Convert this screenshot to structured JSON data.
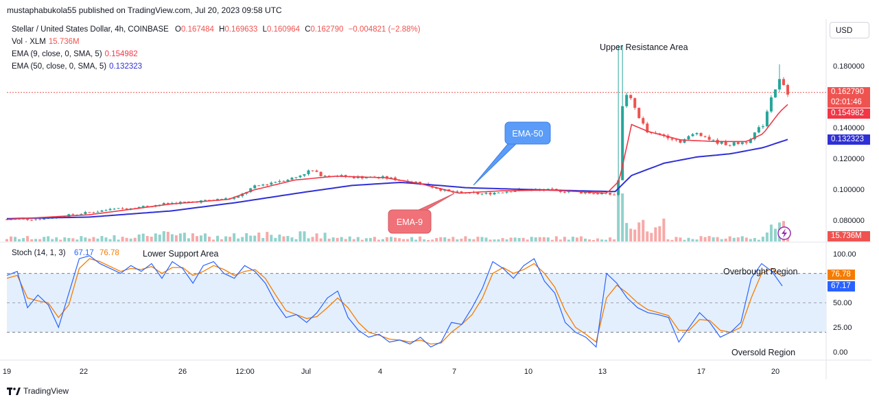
{
  "header": {
    "publisher_line": "mustaphabukola55 published on TradingView.com, Jul 20, 2023 09:58 UTC"
  },
  "legend": {
    "symbol": "Stellar / United States Dollar, 4h, COINBASE",
    "open_label": "O",
    "open": "0.167484",
    "high_label": "H",
    "high": "0.169633",
    "low_label": "L",
    "low": "0.160964",
    "close_label": "C",
    "close": "0.162790",
    "change": "−0.004821 (−2.88%)",
    "vol_label": "Vol · XLM",
    "vol": "15.736M",
    "ema9_label": "EMA (9, close, 0, SMA, 5)",
    "ema9": "0.154982",
    "ema50_label": "EMA (50, close, 0, SMA, 5)",
    "ema50": "0.132323"
  },
  "currency_button": "USD",
  "price_tags": {
    "last_price": "0.162790",
    "countdown": "02:01:46",
    "ema9": "0.154982",
    "ema50": "0.132323",
    "volume": "15.736M"
  },
  "stoch": {
    "label": "Stoch (14, 1, 3)",
    "k": "67.17",
    "d": "76.78",
    "k_tag": "67.17",
    "d_tag": "76.78"
  },
  "annotations": {
    "upper_resistance": "Upper Resistance Area",
    "lower_support": "Lower Support Area",
    "overbought": "Overbought Region",
    "oversold": "Oversold Region",
    "ema50_callout": "EMA-50",
    "ema9_callout": "EMA-9"
  },
  "footer": {
    "brand": "TradingView"
  },
  "colors": {
    "up": "#26a69a",
    "down": "#ef5350",
    "ema9": "#f23645",
    "ema50": "#2f2fd6",
    "stoch_k": "#2962ff",
    "stoch_d": "#f57c00",
    "band": "#e3effd",
    "callout_blue": "#5b9cf8",
    "callout_red": "#f07178"
  },
  "chart_data": [
    {
      "type": "candlestick",
      "name_in_legend": "Stellar / United States Dollar, 4h, COINBASE",
      "x_tick_labels": [
        "19",
        "22",
        "26",
        "12:00",
        "Jul",
        "4",
        "7",
        "10",
        "13",
        "17",
        "20"
      ],
      "y_tick_labels": [
        "0.180000",
        "0.140000",
        "0.120000",
        "0.100000",
        "0.080000"
      ],
      "y_ticks": [
        0.18,
        0.14,
        0.12,
        0.1,
        0.08
      ],
      "y_range": [
        0.075,
        0.195
      ],
      "last_close": 0.16279,
      "close_path_approx": [
        [
          0,
          0.0805
        ],
        [
          0.04,
          0.0808
        ],
        [
          0.08,
          0.0835
        ],
        [
          0.12,
          0.0865
        ],
        [
          0.16,
          0.0885
        ],
        [
          0.2,
          0.091
        ],
        [
          0.24,
          0.0925
        ],
        [
          0.28,
          0.0945
        ],
        [
          0.3,
          0.1015
        ],
        [
          0.33,
          0.1055
        ],
        [
          0.35,
          0.1075
        ],
        [
          0.37,
          0.1125
        ],
        [
          0.38,
          0.1095
        ],
        [
          0.42,
          0.108
        ],
        [
          0.46,
          0.1075
        ],
        [
          0.5,
          0.1045
        ],
        [
          0.54,
          0.098
        ],
        [
          0.58,
          0.097
        ],
        [
          0.62,
          0.0995
        ],
        [
          0.66,
          0.0995
        ],
        [
          0.7,
          0.098
        ],
        [
          0.74,
          0.0965
        ],
        [
          0.745,
          0.1085
        ],
        [
          0.75,
          0.165
        ],
        [
          0.76,
          0.157
        ],
        [
          0.77,
          0.146
        ],
        [
          0.78,
          0.136
        ],
        [
          0.8,
          0.135
        ],
        [
          0.82,
          0.131
        ],
        [
          0.84,
          0.137
        ],
        [
          0.86,
          0.131
        ],
        [
          0.88,
          0.129
        ],
        [
          0.9,
          0.131
        ],
        [
          0.92,
          0.142
        ],
        [
          0.93,
          0.16
        ],
        [
          0.94,
          0.1705
        ],
        [
          0.95,
          0.16279
        ]
      ],
      "ema9_path_approx": [
        [
          0,
          0.0805
        ],
        [
          0.1,
          0.0835
        ],
        [
          0.2,
          0.0905
        ],
        [
          0.27,
          0.0935
        ],
        [
          0.3,
          0.0995
        ],
        [
          0.35,
          0.106
        ],
        [
          0.4,
          0.1085
        ],
        [
          0.46,
          0.1075
        ],
        [
          0.5,
          0.104
        ],
        [
          0.55,
          0.0975
        ],
        [
          0.6,
          0.099
        ],
        [
          0.66,
          0.0995
        ],
        [
          0.73,
          0.0975
        ],
        [
          0.745,
          0.1055
        ],
        [
          0.76,
          0.142
        ],
        [
          0.78,
          0.1375
        ],
        [
          0.82,
          0.132
        ],
        [
          0.86,
          0.131
        ],
        [
          0.9,
          0.131
        ],
        [
          0.92,
          0.136
        ],
        [
          0.94,
          0.15
        ],
        [
          0.95,
          0.15498
        ]
      ],
      "ema50_path_approx": [
        [
          0,
          0.081
        ],
        [
          0.1,
          0.082
        ],
        [
          0.2,
          0.086
        ],
        [
          0.28,
          0.0915
        ],
        [
          0.36,
          0.098
        ],
        [
          0.42,
          0.1025
        ],
        [
          0.48,
          0.1045
        ],
        [
          0.56,
          0.101
        ],
        [
          0.66,
          0.0995
        ],
        [
          0.74,
          0.0985
        ],
        [
          0.76,
          0.109
        ],
        [
          0.8,
          0.117
        ],
        [
          0.84,
          0.121
        ],
        [
          0.88,
          0.123
        ],
        [
          0.92,
          0.127
        ],
        [
          0.95,
          0.13232
        ]
      ]
    },
    {
      "type": "line",
      "title": "Stoch (14, 1, 3)",
      "y_tick_labels": [
        "100.00",
        "75.00",
        "50.00",
        "25.00",
        "0.00"
      ],
      "y_range": [
        0,
        100
      ],
      "band": [
        20,
        80
      ],
      "series": [
        {
          "legend": "67.17",
          "values_approx": [
            78,
            82,
            45,
            58,
            48,
            25,
            60,
            95,
            98,
            90,
            85,
            80,
            88,
            82,
            90,
            75,
            92,
            85,
            70,
            88,
            92,
            80,
            75,
            88,
            82,
            70,
            50,
            35,
            38,
            30,
            40,
            55,
            62,
            35,
            22,
            15,
            18,
            10,
            12,
            8,
            15,
            5,
            10,
            30,
            28,
            45,
            65,
            92,
            85,
            75,
            88,
            95,
            72,
            60,
            30,
            20,
            15,
            5,
            80,
            70,
            55,
            45,
            40,
            38,
            35,
            10,
            25,
            40,
            30,
            15,
            20,
            30,
            75,
            90,
            82,
            67.17
          ]
        },
        {
          "legend": "76.78",
          "values_approx": [
            75,
            78,
            55,
            52,
            50,
            35,
            48,
            85,
            95,
            92,
            87,
            82,
            85,
            84,
            87,
            80,
            86,
            86,
            78,
            82,
            88,
            84,
            78,
            82,
            84,
            75,
            58,
            42,
            38,
            34,
            36,
            45,
            55,
            45,
            30,
            20,
            17,
            13,
            12,
            10,
            12,
            8,
            9,
            20,
            28,
            38,
            55,
            80,
            86,
            80,
            84,
            90,
            80,
            66,
            42,
            25,
            18,
            10,
            55,
            68,
            60,
            50,
            43,
            40,
            37,
            22,
            22,
            33,
            32,
            22,
            20,
            25,
            55,
            80,
            85,
            76.78
          ]
        }
      ]
    }
  ]
}
